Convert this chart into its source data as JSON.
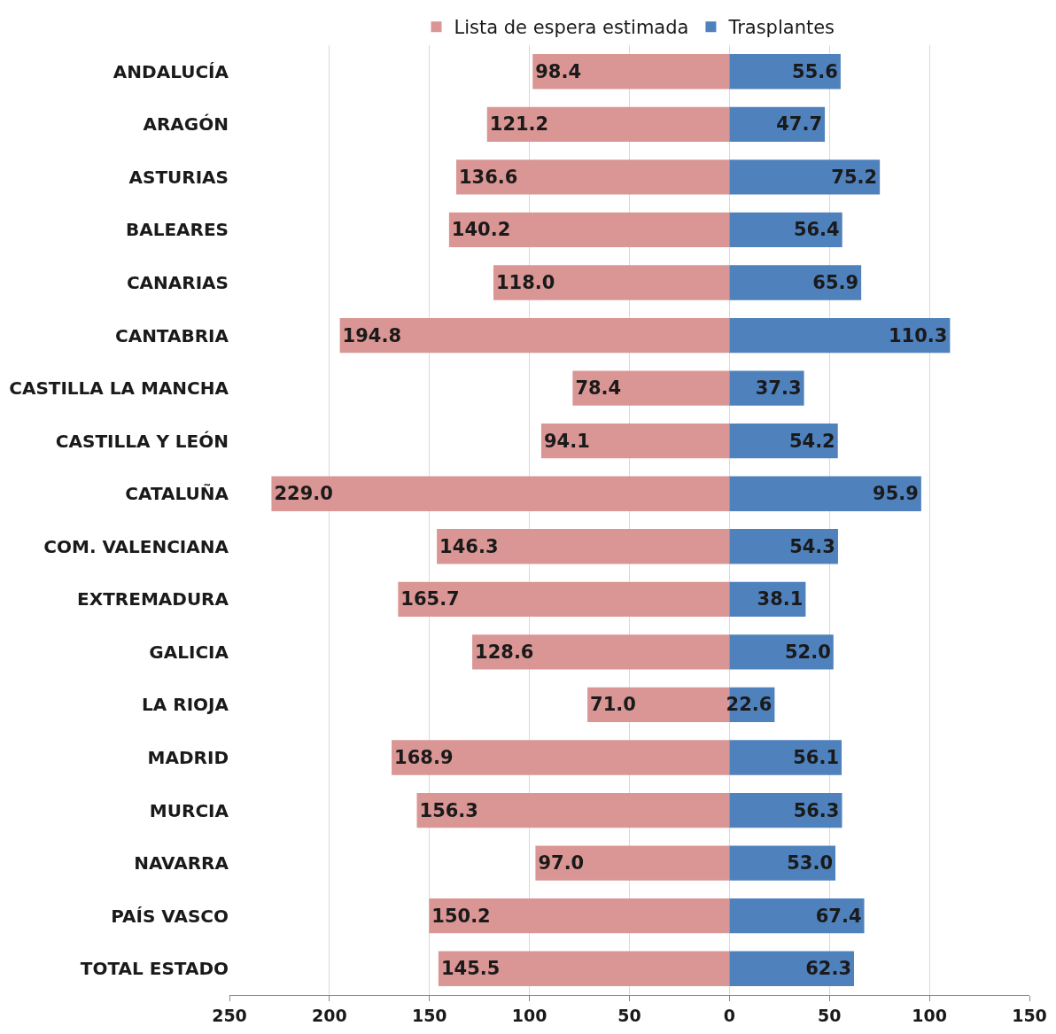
{
  "chart_data": {
    "type": "bar",
    "orientation": "horizontal",
    "categories": [
      "ANDALUCÍA",
      "ARAGÓN",
      "ASTURIAS",
      "BALEARES",
      "CANARIAS",
      "CANTABRIA",
      "CASTILLA LA MANCHA",
      "CASTILLA Y LEÓN",
      "CATALUÑA",
      "COM. VALENCIANA",
      "EXTREMADURA",
      "GALICIA",
      "LA RIOJA",
      "MADRID",
      "MURCIA",
      "NAVARRA",
      "PAÍS VASCO",
      "TOTAL ESTADO"
    ],
    "series": [
      {
        "name": "Lista de espera estimada",
        "color": "#d99694",
        "values": [
          98.4,
          121.2,
          136.6,
          140.2,
          118.0,
          194.8,
          78.4,
          94.1,
          229.0,
          146.3,
          165.7,
          128.6,
          71.0,
          168.9,
          156.3,
          97.0,
          150.2,
          145.5
        ],
        "base": [
          -98.4,
          -121.2,
          -136.6,
          -140.2,
          -118.0,
          -194.8,
          -78.4,
          -94.1,
          -229.0,
          -146.3,
          -165.7,
          -128.6,
          -71.0,
          -168.9,
          -156.3,
          -97.0,
          -150.2,
          -145.5
        ],
        "value_labels": [
          "98.4",
          "121.2",
          "136.6",
          "140.2",
          "118.0",
          "194.8",
          "78.4",
          "94.1",
          "229.0",
          "146.3",
          "165.7",
          "128.6",
          "71.0",
          "168.9",
          "156.3",
          "97.0",
          "150.2",
          "145.5"
        ]
      },
      {
        "name": "Trasplantes",
        "color": "#4f81bd",
        "values": [
          55.6,
          47.7,
          75.2,
          56.4,
          65.9,
          110.3,
          37.3,
          54.2,
          95.9,
          54.3,
          38.1,
          52.0,
          22.6,
          56.1,
          56.3,
          53.0,
          67.4,
          62.3
        ],
        "value_labels": [
          "55.6",
          "47.7",
          "75.2",
          "56.4",
          "65.9",
          "110.3",
          "37.3",
          "54.2",
          "95.9",
          "54.3",
          "38.1",
          "52.0",
          "22.6",
          "56.1",
          "56.3",
          "53.0",
          "67.4",
          "62.3"
        ]
      }
    ],
    "xlim": [
      -250,
      150
    ],
    "xticks": [
      {
        "value": -250,
        "label": "250"
      },
      {
        "value": -200,
        "label": "200"
      },
      {
        "value": -150,
        "label": "150"
      },
      {
        "value": -100,
        "label": "100"
      },
      {
        "value": -50,
        "label": "50"
      },
      0,
      50,
      100,
      150
    ],
    "grid": "x",
    "legend": "top"
  }
}
